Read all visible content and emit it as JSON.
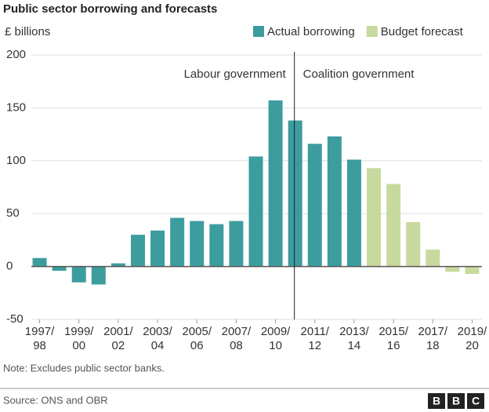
{
  "chart_data": {
    "type": "bar",
    "title": "Public sector borrowing and forecasts",
    "y_label": "£ billions",
    "categories": [
      "1997/\n98",
      null,
      "1999/\n00",
      null,
      "2001/\n02",
      null,
      "2003/\n04",
      null,
      "2005/\n06",
      null,
      "2007/\n08",
      null,
      "2009/\n10",
      null,
      "2011/\n12",
      null,
      "2013/\n14",
      null,
      "2015/\n16",
      null,
      "2017/\n18",
      null,
      "2019/\n20"
    ],
    "series": [
      {
        "name": "Actual borrowing",
        "color": "#3d9c9e",
        "values": [
          8,
          -4,
          -15,
          -17,
          3,
          30,
          34,
          46,
          43,
          40,
          43,
          104,
          157,
          138,
          116,
          123,
          101,
          null,
          null,
          null,
          null,
          null,
          null
        ]
      },
      {
        "name": "Budget forecast",
        "color": "#c8d99d",
        "values": [
          null,
          null,
          null,
          null,
          null,
          null,
          null,
          null,
          null,
          null,
          null,
          null,
          null,
          null,
          null,
          null,
          null,
          93,
          78,
          42,
          16,
          -5,
          -7
        ]
      }
    ],
    "ylim": [
      -50,
      200
    ],
    "yticks": [
      -50,
      0,
      50,
      100,
      150,
      200
    ],
    "grid": true,
    "annotations": [
      "Labour government",
      "Coalition government"
    ],
    "note": "Note: Excludes public sector banks.",
    "source": "Source: ONS and OBR",
    "logo": [
      "B",
      "B",
      "C"
    ]
  }
}
